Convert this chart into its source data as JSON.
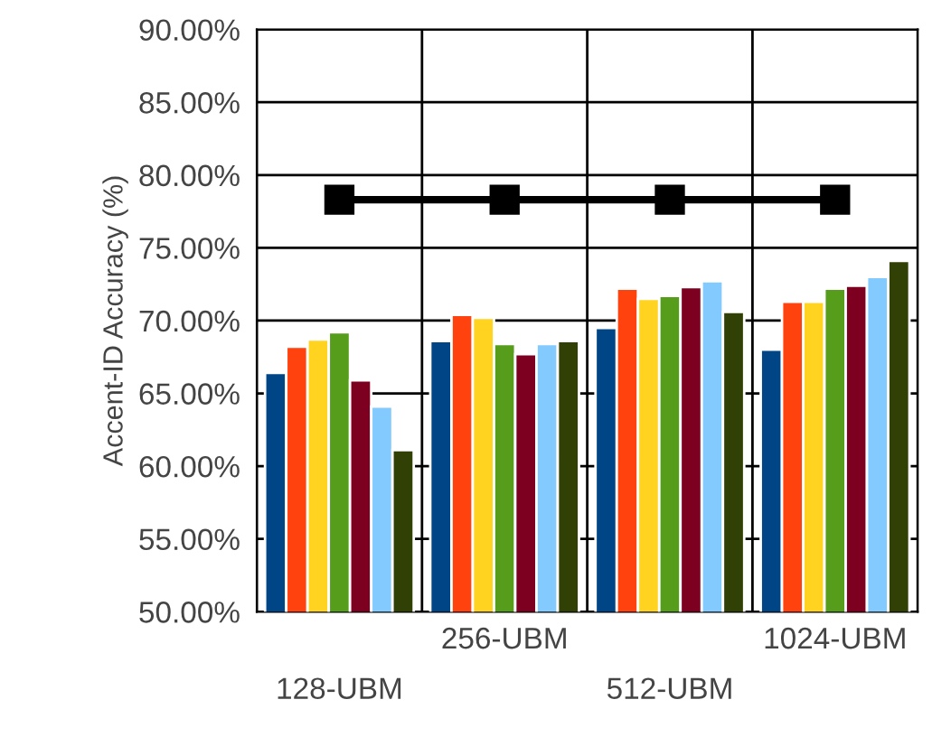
{
  "chart_data": {
    "type": "bar",
    "ylabel": "Accent-ID Accuracy (%)",
    "categories": [
      "128-UBM",
      "256-UBM",
      "512-UBM",
      "1024-UBM"
    ],
    "series": [
      {
        "color": "#004586",
        "values": [
          66.4,
          68.6,
          69.5,
          68.0
        ]
      },
      {
        "color": "#ff420e",
        "values": [
          68.2,
          70.4,
          72.2,
          71.3
        ]
      },
      {
        "color": "#ffd320",
        "values": [
          68.7,
          70.2,
          71.5,
          71.3
        ]
      },
      {
        "color": "#579d1c",
        "values": [
          69.2,
          68.4,
          71.7,
          72.2
        ]
      },
      {
        "color": "#7e0021",
        "values": [
          65.9,
          67.7,
          72.3,
          72.4
        ]
      },
      {
        "color": "#83caff",
        "values": [
          64.1,
          68.4,
          72.7,
          73.0
        ]
      },
      {
        "color": "#314004",
        "values": [
          61.1,
          68.6,
          70.6,
          74.1
        ]
      },
      {
        "type": "line",
        "color": "#000000",
        "marker": "square",
        "values": [
          78.3,
          78.3,
          78.3,
          78.3
        ]
      }
    ],
    "ylim": [
      50,
      90
    ],
    "yticks": [
      {
        "value": 50,
        "label": "50.00%"
      },
      {
        "value": 55,
        "label": "55.00%"
      },
      {
        "value": 60,
        "label": "60.00%"
      },
      {
        "value": 65,
        "label": "65.00%"
      },
      {
        "value": 70,
        "label": "70.00%"
      },
      {
        "value": 75,
        "label": "75.00%"
      },
      {
        "value": 80,
        "label": "80.00%"
      },
      {
        "value": 85,
        "label": "85.00%"
      },
      {
        "value": 90,
        "label": "90.00%"
      }
    ],
    "grid": true
  }
}
